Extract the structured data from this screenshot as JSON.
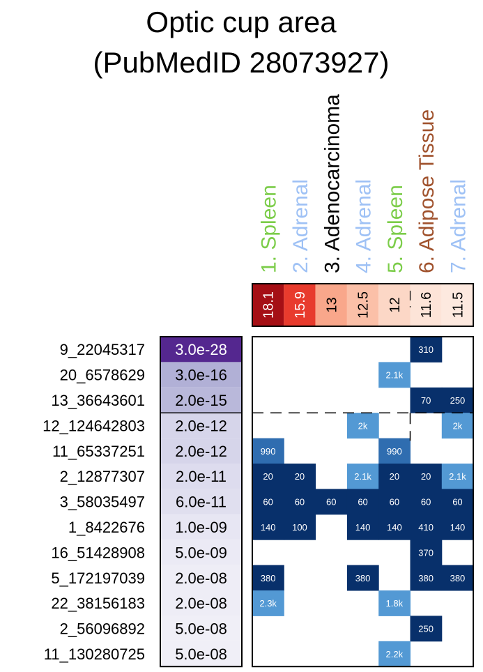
{
  "chart_data": {
    "type": "heatmap",
    "title_line1": "Optic cup area",
    "title_line2": "(PubMedID 28073927)",
    "clusters": [
      {
        "label": "1. Spleen",
        "score": "18.1",
        "color": "#7ccd4a",
        "fill": "#a50f15",
        "text_color": "#ffffff"
      },
      {
        "label": "2. Adrenal",
        "score": "15.9",
        "color": "#9ec1f5",
        "fill": "#e83b2d",
        "text_color": "#ffffff"
      },
      {
        "label": "3. Adenocarcinoma",
        "score": "13",
        "color": "#000000",
        "fill": "#f9a78b",
        "text_color": "#000000"
      },
      {
        "label": "4. Adrenal",
        "score": "12.5",
        "color": "#9ec1f5",
        "fill": "#fbc0a8",
        "text_color": "#000000"
      },
      {
        "label": "5. Spleen",
        "score": "12",
        "color": "#7ccd4a",
        "fill": "#fcd7c6",
        "text_color": "#000000"
      },
      {
        "label": "6. Adipose Tissue",
        "score": "11.6",
        "color": "#a0522d",
        "fill": "#fde4d8",
        "text_color": "#000000"
      },
      {
        "label": "7. Adrenal",
        "score": "11.5",
        "color": "#9ec1f5",
        "fill": "#fde9df",
        "text_color": "#000000"
      }
    ],
    "snps": [
      {
        "id": "9_22045317",
        "pvalue": "3.0e-28",
        "fill": "#54278f",
        "text_color": "#ffffff"
      },
      {
        "id": "20_6578629",
        "pvalue": "3.0e-16",
        "fill": "#b1b0d6",
        "text_color": "#000000"
      },
      {
        "id": "13_36643601",
        "pvalue": "2.0e-15",
        "fill": "#b9b8da",
        "text_color": "#000000"
      },
      {
        "id": "12_124642803",
        "pvalue": "2.0e-12",
        "fill": "#d6d5ea",
        "text_color": "#000000"
      },
      {
        "id": "11_65337251",
        "pvalue": "2.0e-12",
        "fill": "#d6d5ea",
        "text_color": "#000000"
      },
      {
        "id": "2_12877307",
        "pvalue": "2.0e-11",
        "fill": "#dddcee",
        "text_color": "#000000"
      },
      {
        "id": "3_58035497",
        "pvalue": "6.0e-11",
        "fill": "#e0dfef",
        "text_color": "#000000"
      },
      {
        "id": "1_8422676",
        "pvalue": "1.0e-09",
        "fill": "#e7e6f3",
        "text_color": "#000000"
      },
      {
        "id": "16_51428908",
        "pvalue": "5.0e-09",
        "fill": "#ebeaf5",
        "text_color": "#000000"
      },
      {
        "id": "5_172197039",
        "pvalue": "2.0e-08",
        "fill": "#eeedf6",
        "text_color": "#000000"
      },
      {
        "id": "22_38156183",
        "pvalue": "2.0e-08",
        "fill": "#eeedf6",
        "text_color": "#000000"
      },
      {
        "id": "2_56096892",
        "pvalue": "5.0e-08",
        "fill": "#f0eff7",
        "text_color": "#000000"
      },
      {
        "id": "11_130280725",
        "pvalue": "5.0e-08",
        "fill": "#f0eff7",
        "text_color": "#000000"
      }
    ],
    "cells": [
      {
        "row": 0,
        "col": 5,
        "value": "310",
        "shade": "dark"
      },
      {
        "row": 1,
        "col": 4,
        "value": "2.1k",
        "shade": "light"
      },
      {
        "row": 2,
        "col": 5,
        "value": "70",
        "shade": "dark"
      },
      {
        "row": 2,
        "col": 6,
        "value": "250",
        "shade": "dark"
      },
      {
        "row": 3,
        "col": 3,
        "value": "2k",
        "shade": "light"
      },
      {
        "row": 3,
        "col": 6,
        "value": "2k",
        "shade": "light"
      },
      {
        "row": 4,
        "col": 0,
        "value": "990",
        "shade": "mid"
      },
      {
        "row": 4,
        "col": 4,
        "value": "990",
        "shade": "mid"
      },
      {
        "row": 5,
        "col": 0,
        "value": "20",
        "shade": "dark"
      },
      {
        "row": 5,
        "col": 1,
        "value": "20",
        "shade": "dark"
      },
      {
        "row": 5,
        "col": 3,
        "value": "2.1k",
        "shade": "light"
      },
      {
        "row": 5,
        "col": 4,
        "value": "20",
        "shade": "dark"
      },
      {
        "row": 5,
        "col": 5,
        "value": "20",
        "shade": "dark"
      },
      {
        "row": 5,
        "col": 6,
        "value": "2.1k",
        "shade": "light"
      },
      {
        "row": 6,
        "col": 0,
        "value": "60",
        "shade": "dark"
      },
      {
        "row": 6,
        "col": 1,
        "value": "60",
        "shade": "dark"
      },
      {
        "row": 6,
        "col": 2,
        "value": "60",
        "shade": "dark"
      },
      {
        "row": 6,
        "col": 3,
        "value": "60",
        "shade": "dark"
      },
      {
        "row": 6,
        "col": 4,
        "value": "60",
        "shade": "dark"
      },
      {
        "row": 6,
        "col": 5,
        "value": "60",
        "shade": "dark"
      },
      {
        "row": 6,
        "col": 6,
        "value": "60",
        "shade": "dark"
      },
      {
        "row": 7,
        "col": 0,
        "value": "140",
        "shade": "dark"
      },
      {
        "row": 7,
        "col": 1,
        "value": "100",
        "shade": "dark"
      },
      {
        "row": 7,
        "col": 3,
        "value": "140",
        "shade": "dark"
      },
      {
        "row": 7,
        "col": 4,
        "value": "140",
        "shade": "dark"
      },
      {
        "row": 7,
        "col": 5,
        "value": "410",
        "shade": "dark"
      },
      {
        "row": 7,
        "col": 6,
        "value": "140",
        "shade": "dark"
      },
      {
        "row": 8,
        "col": 5,
        "value": "370",
        "shade": "dark"
      },
      {
        "row": 9,
        "col": 0,
        "value": "380",
        "shade": "dark"
      },
      {
        "row": 9,
        "col": 3,
        "value": "380",
        "shade": "dark"
      },
      {
        "row": 9,
        "col": 5,
        "value": "380",
        "shade": "dark"
      },
      {
        "row": 9,
        "col": 6,
        "value": "380",
        "shade": "dark"
      },
      {
        "row": 10,
        "col": 0,
        "value": "2.3k",
        "shade": "light"
      },
      {
        "row": 10,
        "col": 4,
        "value": "1.8k",
        "shade": "light"
      },
      {
        "row": 11,
        "col": 5,
        "value": "250",
        "shade": "dark"
      },
      {
        "row": 12,
        "col": 4,
        "value": "2.2k",
        "shade": "light"
      }
    ],
    "shade_colors": {
      "dark": "#08306b",
      "mid": "#2f6db0",
      "light": "#5399d4"
    },
    "significance_threshold_after_row": 2,
    "dashed_divider_after_col": 4
  }
}
